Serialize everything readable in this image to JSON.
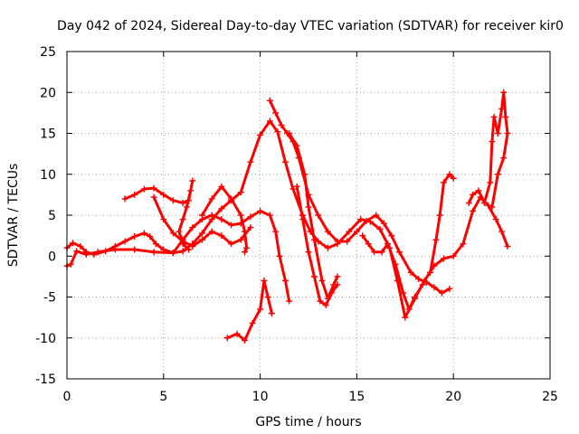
{
  "chart_data": {
    "type": "scatter",
    "title": "Day 042 of 2024, Sidereal Day-to-day VTEC variation (SDTVAR) for receiver kir0",
    "xlabel": "GPS time / hours",
    "ylabel": "SDTVAR / TECUs",
    "xlim": [
      0,
      25
    ],
    "ylim": [
      -15,
      25
    ],
    "xticks": [
      0,
      5,
      10,
      15,
      20,
      25
    ],
    "yticks": [
      -15,
      -10,
      -5,
      0,
      5,
      10,
      15,
      20,
      25
    ],
    "grid": true,
    "marker": "+",
    "color": "#ff0000",
    "series": [
      {
        "name": "trace-1",
        "points": [
          [
            0,
            1
          ],
          [
            0.3,
            1.6
          ],
          [
            0.7,
            1.2
          ],
          [
            1.0,
            0.5
          ],
          [
            1.4,
            0.2
          ],
          [
            2.0,
            0.6
          ],
          [
            2.5,
            1.2
          ],
          [
            3.0,
            1.8
          ],
          [
            3.5,
            2.4
          ],
          [
            4.0,
            2.8
          ],
          [
            4.3,
            2.4
          ],
          [
            4.6,
            1.5
          ],
          [
            5.0,
            0.8
          ],
          [
            5.5,
            0.4
          ],
          [
            6.0,
            0.6
          ],
          [
            6.5,
            1.5
          ],
          [
            7.0,
            2.8
          ],
          [
            7.5,
            4.5
          ],
          [
            8.0,
            5.8
          ],
          [
            8.5,
            6.8
          ],
          [
            9.0,
            7.8
          ],
          [
            9.5,
            11.5
          ],
          [
            10.0,
            14.8
          ],
          [
            10.5,
            16.5
          ],
          [
            10.9,
            15.2
          ],
          [
            11.3,
            11.5
          ],
          [
            11.7,
            8.2
          ],
          [
            12.2,
            5.0
          ],
          [
            12.6,
            3.0
          ],
          [
            13.0,
            1.8
          ],
          [
            13.5,
            1.0
          ],
          [
            14.0,
            1.5
          ],
          [
            14.6,
            3.0
          ],
          [
            15.2,
            4.5
          ],
          [
            15.7,
            4.2
          ],
          [
            16.2,
            3.3
          ],
          [
            16.7,
            1.0
          ],
          [
            17.1,
            -3.0
          ],
          [
            17.5,
            -7.5
          ],
          [
            18.0,
            -5.2
          ],
          [
            18.5,
            -3.0
          ],
          [
            19.0,
            -1.2
          ],
          [
            19.5,
            -0.3
          ],
          [
            20.0,
            0.0
          ],
          [
            20.5,
            1.5
          ],
          [
            21.0,
            5.5
          ],
          [
            21.4,
            7.2
          ],
          [
            21.8,
            6.2
          ],
          [
            22.2,
            4.5
          ],
          [
            22.5,
            3.0
          ],
          [
            22.8,
            1.2
          ]
        ]
      },
      {
        "name": "trace-2",
        "points": [
          [
            0,
            -1.2
          ],
          [
            0.2,
            -1.0
          ],
          [
            0.5,
            0.6
          ],
          [
            1.0,
            0.2
          ],
          [
            1.6,
            0.5
          ],
          [
            2.5,
            0.8
          ],
          [
            3.5,
            0.8
          ],
          [
            4.5,
            0.5
          ],
          [
            5.5,
            0.4
          ],
          [
            6.0,
            2.0
          ],
          [
            6.5,
            3.5
          ],
          [
            7.0,
            4.5
          ],
          [
            7.5,
            5.0
          ],
          [
            8.0,
            4.5
          ],
          [
            8.5,
            3.8
          ],
          [
            9.0,
            4.0
          ],
          [
            9.5,
            4.8
          ],
          [
            10.0,
            5.5
          ],
          [
            10.5,
            5.0
          ],
          [
            10.8,
            3.0
          ],
          [
            11.0,
            0.0
          ],
          [
            11.3,
            -3.0
          ],
          [
            11.5,
            -5.5
          ]
        ]
      },
      {
        "name": "trace-3",
        "points": [
          [
            3.0,
            7.0
          ],
          [
            3.5,
            7.5
          ],
          [
            4.0,
            8.2
          ],
          [
            4.5,
            8.3
          ],
          [
            5.0,
            7.5
          ],
          [
            5.5,
            6.8
          ],
          [
            6.0,
            6.5
          ],
          [
            6.3,
            6.8
          ],
          [
            6.5,
            9.2
          ],
          [
            6.4,
            8.0
          ],
          [
            6.2,
            6.0
          ],
          [
            6.0,
            4.5
          ],
          [
            5.8,
            3.0
          ],
          [
            6.0,
            1.5
          ],
          [
            6.3,
            0.8
          ]
        ]
      },
      {
        "name": "trace-4",
        "points": [
          [
            4.5,
            7.2
          ],
          [
            5.0,
            4.5
          ],
          [
            5.5,
            2.8
          ],
          [
            6.0,
            1.8
          ],
          [
            6.5,
            1.2
          ],
          [
            7.0,
            2.0
          ],
          [
            7.5,
            3.0
          ],
          [
            8.0,
            2.5
          ],
          [
            8.5,
            1.5
          ],
          [
            9.0,
            2.0
          ],
          [
            9.5,
            3.5
          ]
        ]
      },
      {
        "name": "trace-5",
        "points": [
          [
            7.0,
            5.0
          ],
          [
            7.5,
            7.0
          ],
          [
            8.0,
            8.5
          ],
          [
            8.5,
            7.0
          ],
          [
            9.0,
            5.0
          ],
          [
            9.2,
            3.0
          ],
          [
            9.3,
            1.0
          ],
          [
            9.2,
            0.5
          ]
        ]
      },
      {
        "name": "trace-6",
        "points": [
          [
            8.3,
            -10.0
          ],
          [
            8.8,
            -9.5
          ],
          [
            9.2,
            -10.3
          ],
          [
            9.6,
            -8.2
          ],
          [
            10.0,
            -6.5
          ],
          [
            10.2,
            -3.0
          ],
          [
            10.4,
            -5.0
          ],
          [
            10.6,
            -7.0
          ]
        ]
      },
      {
        "name": "trace-7",
        "points": [
          [
            10.5,
            19.0
          ],
          [
            10.8,
            17.5
          ],
          [
            11.1,
            16.0
          ],
          [
            11.4,
            15.0
          ],
          [
            11.7,
            14.0
          ],
          [
            12.0,
            12.0
          ],
          [
            12.5,
            7.5
          ],
          [
            13.0,
            5.0
          ],
          [
            13.5,
            3.0
          ],
          [
            14.0,
            1.8
          ],
          [
            14.5,
            1.8
          ],
          [
            15.0,
            3.0
          ],
          [
            15.5,
            4.3
          ],
          [
            16.0,
            5.0
          ],
          [
            16.4,
            4.0
          ],
          [
            16.8,
            2.5
          ],
          [
            17.2,
            0.5
          ],
          [
            17.8,
            -2.0
          ],
          [
            18.2,
            -2.8
          ],
          [
            18.6,
            -3.2
          ],
          [
            19.0,
            -3.8
          ],
          [
            19.4,
            -4.5
          ],
          [
            19.8,
            -4.0
          ]
        ]
      },
      {
        "name": "trace-8",
        "points": [
          [
            11.5,
            15.0
          ],
          [
            11.9,
            13.5
          ],
          [
            12.3,
            10.0
          ],
          [
            12.5,
            6.0
          ],
          [
            12.8,
            2.0
          ],
          [
            13.2,
            -3.0
          ],
          [
            13.5,
            -5.2
          ],
          [
            13.8,
            -3.5
          ],
          [
            14.0,
            -2.5
          ]
        ]
      },
      {
        "name": "trace-9",
        "points": [
          [
            11.9,
            8.5
          ],
          [
            12.2,
            4.5
          ],
          [
            12.5,
            0.5
          ],
          [
            12.8,
            -2.5
          ],
          [
            13.1,
            -5.5
          ],
          [
            13.4,
            -6.0
          ],
          [
            13.7,
            -4.5
          ],
          [
            14.0,
            -3.5
          ]
        ]
      },
      {
        "name": "trace-10",
        "points": [
          [
            15.3,
            2.5
          ],
          [
            15.6,
            1.5
          ],
          [
            15.9,
            0.5
          ],
          [
            16.3,
            0.5
          ],
          [
            16.6,
            1.5
          ],
          [
            17.0,
            -1.0
          ],
          [
            17.4,
            -4.5
          ],
          [
            17.7,
            -6.5
          ],
          [
            18.0,
            -5.0
          ],
          [
            18.4,
            -3.5
          ]
        ]
      },
      {
        "name": "trace-11",
        "points": [
          [
            18.8,
            -2.0
          ],
          [
            19.1,
            2.0
          ],
          [
            19.3,
            5.0
          ],
          [
            19.5,
            9.0
          ],
          [
            19.8,
            10.0
          ],
          [
            20.0,
            9.5
          ]
        ]
      },
      {
        "name": "trace-12",
        "points": [
          [
            20.8,
            6.5
          ],
          [
            21.0,
            7.5
          ],
          [
            21.3,
            8.0
          ],
          [
            21.6,
            6.5
          ],
          [
            21.9,
            9.0
          ],
          [
            22.0,
            14.0
          ],
          [
            22.1,
            17.0
          ],
          [
            22.3,
            15.0
          ],
          [
            22.5,
            18.0
          ],
          [
            22.6,
            20.0
          ],
          [
            22.7,
            17.0
          ],
          [
            22.8,
            15.0
          ],
          [
            22.6,
            12.0
          ],
          [
            22.3,
            10.0
          ],
          [
            22.0,
            6.0
          ]
        ]
      }
    ]
  }
}
